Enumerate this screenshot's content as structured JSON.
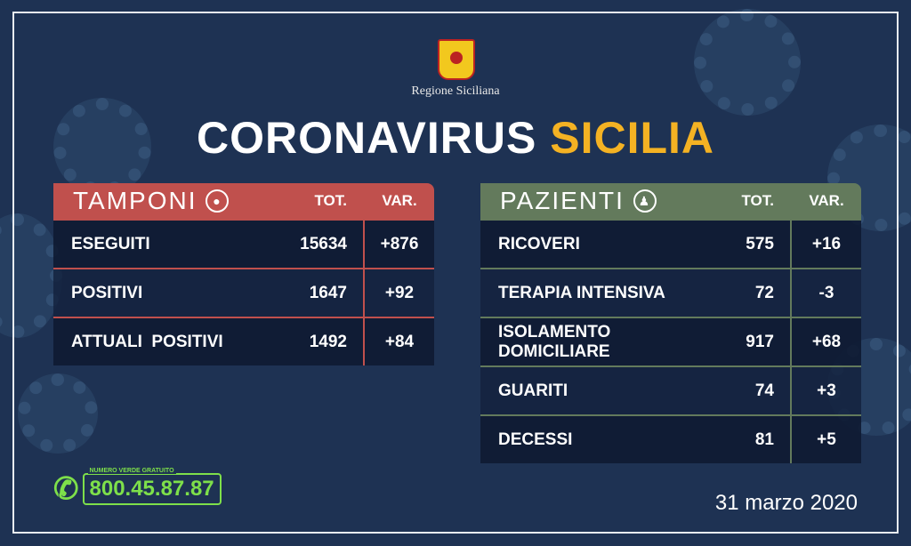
{
  "header": {
    "region": "Regione Siciliana",
    "title_main": "CORONAVIRUS",
    "title_accent": "SICILIA"
  },
  "colors": {
    "tamponi": "#c0504d",
    "pazienti": "#637a5c",
    "accent": "#f4b223",
    "hotline": "#7ee04a"
  },
  "tamponi": {
    "title": "TAMPONI",
    "icon": "swab-icon",
    "col_tot": "TOT.",
    "col_var": "VAR.",
    "rows": [
      {
        "label": "ESEGUITI",
        "tot": "15634",
        "var": "+876"
      },
      {
        "label": "POSITIVI",
        "tot": "1647",
        "var": "+92"
      },
      {
        "label": "ATTUALI  POSITIVI",
        "tot": "1492",
        "var": "+84"
      }
    ]
  },
  "pazienti": {
    "title": "PAZIENTI",
    "icon": "person-icon",
    "col_tot": "TOT.",
    "col_var": "VAR.",
    "rows": [
      {
        "label": "RICOVERI",
        "tot": "575",
        "var": "+16"
      },
      {
        "label": "TERAPIA INTENSIVA",
        "tot": "72",
        "var": "-3"
      },
      {
        "label": "ISOLAMENTO DOMICILIARE",
        "tot": "917",
        "var": "+68"
      },
      {
        "label": "GUARITI",
        "tot": "74",
        "var": "+3"
      },
      {
        "label": "DECESSI",
        "tot": "81",
        "var": "+5"
      }
    ]
  },
  "hotline": {
    "label": "NUMERO VERDE GRATUITO",
    "number": "800.45.87.87"
  },
  "date": "31 marzo 2020"
}
